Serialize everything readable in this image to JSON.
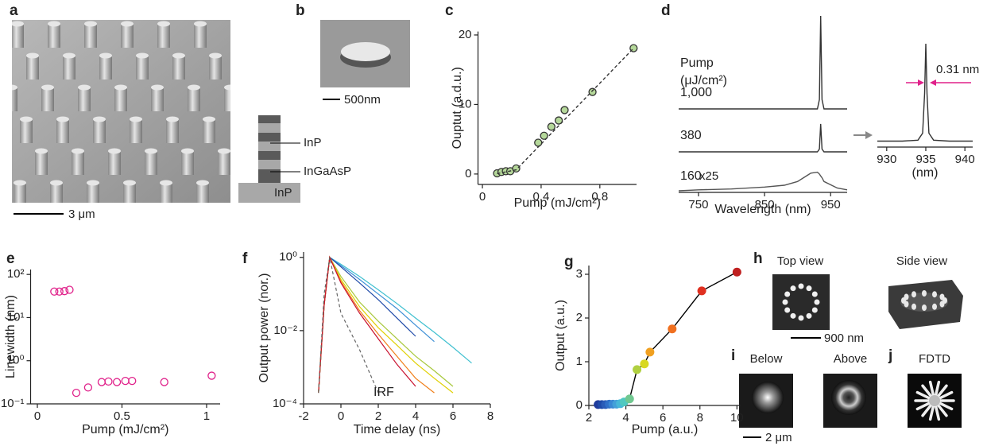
{
  "figure": {
    "panel_labels": [
      "a",
      "b",
      "c",
      "d",
      "e",
      "f",
      "g",
      "h",
      "i",
      "j"
    ],
    "a": {
      "scale_bar": "3 μm"
    },
    "b": {
      "scale_bar": "500nm",
      "layers": [
        "InP",
        "InGaAsP",
        "InP"
      ]
    },
    "h": {
      "top_view": "Top view",
      "side_view": "Side view",
      "scale_bar": "900 nm"
    },
    "i": {
      "below": "Below",
      "above": "Above",
      "scale_bar": "2 μm"
    },
    "j": {
      "label": "FDTD"
    }
  },
  "chart_data": [
    {
      "type": "scatter",
      "xlabel": "Pump (mJ/cm²)",
      "ylabel": "Ouptut (a.d.u.)",
      "x": [
        0.1,
        0.13,
        0.16,
        0.19,
        0.23,
        0.38,
        0.42,
        0.47,
        0.52,
        0.56,
        0.75,
        1.03
      ],
      "series": [
        {
          "values": [
            0.1,
            0.3,
            0.4,
            0.4,
            0.8,
            4.5,
            5.5,
            6.8,
            7.7,
            9.2,
            11.8,
            18.1
          ],
          "color": "#b5d89a",
          "marker": true,
          "line": false
        },
        {
          "x": [
            0.1,
            0.23,
            1.03
          ],
          "values": [
            0.05,
            0.6,
            18.1
          ],
          "color": "#333333",
          "dash": true,
          "marker": false
        }
      ],
      "xlim": [
        -0.03,
        1.05
      ],
      "ylim": [
        -1.5,
        20.5
      ],
      "xticks": [
        0,
        0.4,
        0.8
      ],
      "yticks": [
        0,
        10,
        20
      ]
    },
    {
      "type": "line",
      "xlabel": "Wavelength (nm)",
      "legend_title": "Pump",
      "legend_unit": "(μJ/cm²)",
      "x": [
        720,
        750,
        800,
        850,
        880,
        900,
        920,
        930,
        933,
        935,
        937,
        940,
        960,
        975
      ],
      "series": [
        {
          "name": "1,000",
          "color": "#333333",
          "values": [
            0,
            0,
            0,
            0,
            0,
            0,
            0,
            0,
            0.1,
            1,
            0.1,
            0,
            0,
            0
          ]
        },
        {
          "name": "380",
          "color": "#333333",
          "values": [
            0,
            0,
            0,
            0,
            0,
            0,
            0,
            0,
            0.03,
            0.3,
            0.03,
            0,
            0,
            0
          ]
        },
        {
          "name": "160",
          "color": "#555555",
          "values": [
            0,
            0.01,
            0.02,
            0.04,
            0.06,
            0.1,
            0.19,
            0.2,
            0.18,
            0.16,
            0.14,
            0.1,
            0.03,
            0.01
          ]
        }
      ],
      "annotations": [
        "x25"
      ],
      "xlim": [
        720,
        975
      ],
      "xticks": [
        750,
        850,
        950
      ]
    },
    {
      "type": "line",
      "xlabel": "(nm)",
      "x": [
        928.8,
        932,
        934,
        934.6,
        934.85,
        935,
        935.15,
        935.4,
        936,
        938,
        941
      ],
      "series": [
        {
          "color": "#333333",
          "values": [
            0.02,
            0.02,
            0.03,
            0.1,
            0.5,
            1,
            0.5,
            0.1,
            0.03,
            0.02,
            0.02
          ]
        }
      ],
      "annotations": [
        "0.31 nm"
      ],
      "xlim": [
        928.8,
        941
      ],
      "xticks": [
        930,
        935,
        940
      ]
    },
    {
      "type": "scatter",
      "xlabel": "Pump (mJ/cm²)",
      "ylabel": "Linewidth (nm)",
      "ylog": true,
      "x": [
        0.1,
        0.13,
        0.16,
        0.19,
        0.23,
        0.3,
        0.38,
        0.42,
        0.47,
        0.52,
        0.56,
        0.75,
        1.03
      ],
      "series": [
        {
          "values": [
            40,
            40,
            41,
            44,
            0.18,
            0.24,
            0.32,
            0.33,
            0.32,
            0.34,
            0.34,
            0.32,
            0.45
          ],
          "color": "#e0218a",
          "marker": true,
          "marker_fill": "none",
          "line": false
        }
      ],
      "xlim": [
        -0.04,
        1.08
      ],
      "ylim": [
        0.1,
        130
      ],
      "xticks": [
        0,
        0.5,
        1
      ],
      "yticks": [
        {
          "value": 0.1,
          "label": "10⁻¹"
        },
        {
          "value": 1,
          "label": "10⁰"
        },
        {
          "value": 10,
          "label": "10¹"
        },
        {
          "value": 100,
          "label": "10²"
        }
      ]
    },
    {
      "type": "line",
      "xlabel": "Time delay (ns)",
      "ylabel": "Output power (nor.)",
      "ylog": true,
      "x": [
        -1.2,
        -0.9,
        -0.6,
        0,
        1,
        2,
        3,
        4,
        5,
        6,
        7
      ],
      "series": [
        {
          "color": "#40c0d0",
          "values": [
            0.0002,
            0.05,
            1,
            0.65,
            0.3,
            0.13,
            0.055,
            0.022,
            0.009,
            0.0035,
            0.0013
          ]
        },
        {
          "color": "#3d8fd6",
          "values": [
            0.0002,
            0.05,
            1,
            0.6,
            0.25,
            0.1,
            0.04,
            0.014,
            0.005,
            null,
            null
          ]
        },
        {
          "color": "#1f4aa8",
          "values": [
            0.0002,
            0.05,
            1,
            0.55,
            0.2,
            0.07,
            0.022,
            0.007,
            null,
            null,
            null
          ]
        },
        {
          "color": "#a8c83c",
          "values": [
            0.0002,
            0.05,
            1,
            0.3,
            0.06,
            0.018,
            0.006,
            0.002,
            0.0008,
            0.0003,
            null
          ]
        },
        {
          "color": "#e0d000",
          "values": [
            0.0002,
            0.05,
            1,
            0.25,
            0.045,
            0.012,
            0.004,
            0.0013,
            0.0005,
            0.0002,
            null
          ]
        },
        {
          "color": "#f07f1a",
          "values": [
            0.0002,
            0.05,
            1,
            0.22,
            0.035,
            0.008,
            0.002,
            0.0005,
            0.0002,
            null,
            null
          ]
        },
        {
          "color": "#c8102e",
          "values": [
            0.0002,
            0.05,
            1,
            0.2,
            0.03,
            0.006,
            0.0012,
            0.0003,
            null,
            null,
            null
          ]
        },
        {
          "name": "IRF",
          "color": "#666666",
          "dash": true,
          "values": [
            0.0002,
            0.1,
            1,
            0.03,
            0.003,
            0.0002,
            null,
            null,
            null,
            null,
            null
          ]
        }
      ],
      "xlim": [
        -2,
        8
      ],
      "ylim": [
        0.0001,
        1.4
      ],
      "xticks": [
        -2,
        0,
        2,
        4,
        6,
        8
      ],
      "yticks": [
        {
          "value": 0.0001,
          "label": "10⁻⁴"
        },
        {
          "value": 0.01,
          "label": "10⁻²"
        },
        {
          "value": 1,
          "label": "10⁰"
        }
      ]
    },
    {
      "type": "line",
      "xlabel": "Pump (a.u.)",
      "ylabel": "Output (a.u.)",
      "x": [
        2.5,
        2.7,
        2.9,
        3.1,
        3.3,
        3.5,
        3.7,
        3.9,
        4.2,
        4.6,
        5.0,
        5.3,
        6.5,
        8.1,
        10.0
      ],
      "series": [
        {
          "color": "#000000",
          "marker": true,
          "values": [
            0.02,
            0.02,
            0.02,
            0.03,
            0.03,
            0.03,
            0.04,
            0.08,
            0.15,
            0.82,
            0.95,
            1.22,
            1.75,
            2.62,
            3.05
          ],
          "colors": [
            "#1f3b9c",
            "#1f4aa8",
            "#2a5cb8",
            "#3070c8",
            "#3a88d4",
            "#44a0d8",
            "#48b8d8",
            "#50c8c0",
            "#70c890",
            "#b0d040",
            "#d8d820",
            "#f0a020",
            "#f07020",
            "#e03020",
            "#c02020"
          ]
        }
      ],
      "xlim": [
        2,
        10.2
      ],
      "ylim": [
        0,
        3.2
      ],
      "xticks": [
        2,
        4,
        6,
        8,
        10
      ],
      "yticks": [
        0,
        1,
        2,
        3
      ]
    }
  ]
}
